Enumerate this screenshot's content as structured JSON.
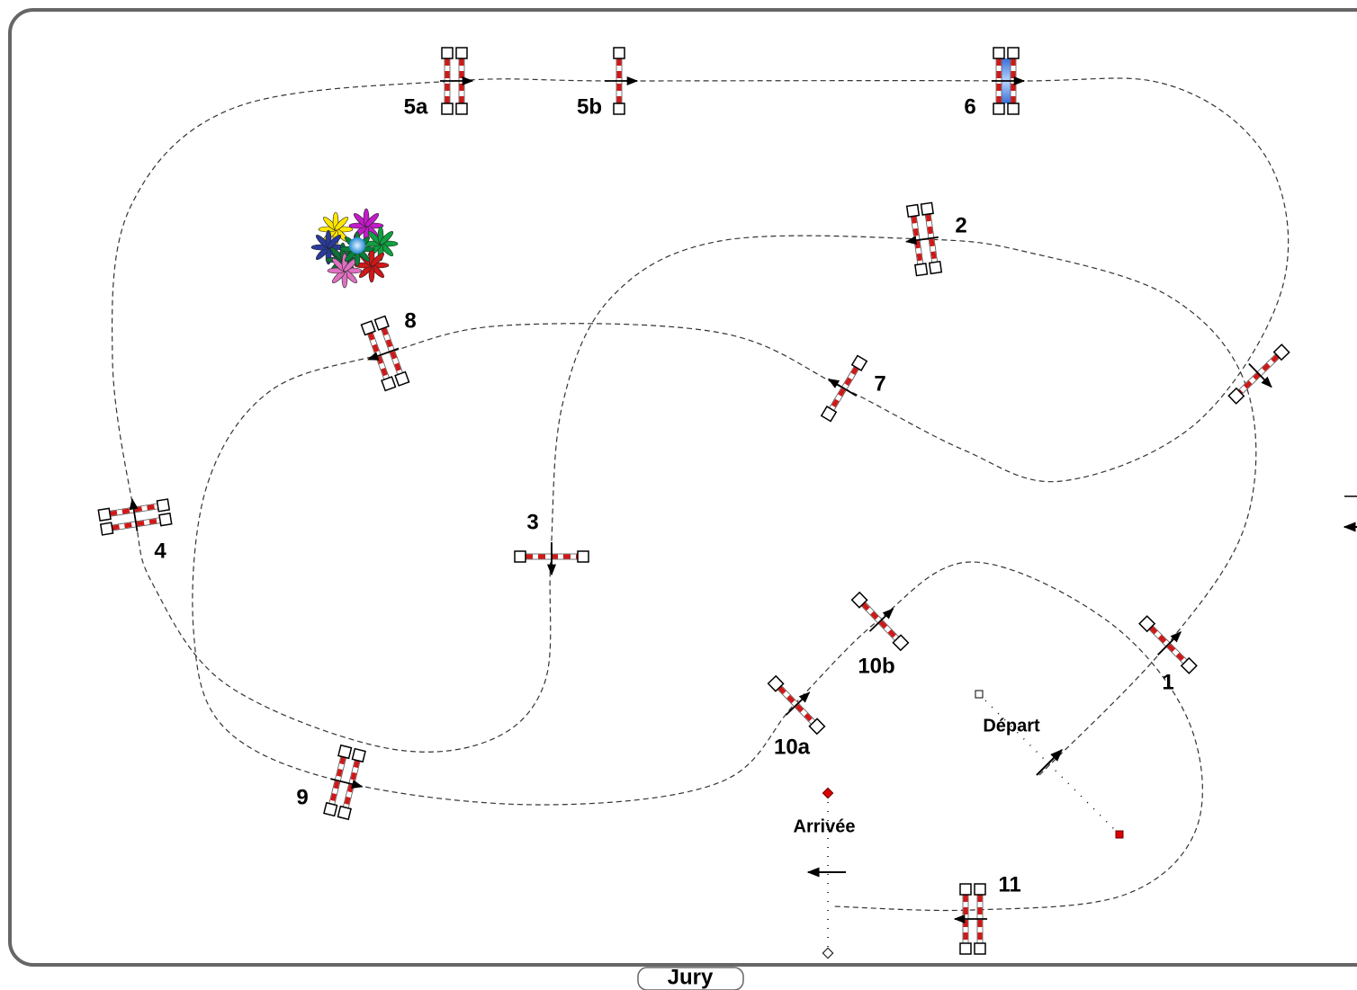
{
  "obstacles": [
    {
      "label": "5a"
    },
    {
      "label": "5b"
    },
    {
      "label": "6"
    },
    {
      "label": "2"
    },
    {
      "label": "8"
    },
    {
      "label": "7"
    },
    {
      "label": "4"
    },
    {
      "label": "3"
    },
    {
      "label": "10b"
    },
    {
      "label": "1"
    },
    {
      "label": "10a"
    },
    {
      "label": "9"
    },
    {
      "label": "11"
    }
  ],
  "start": {
    "label": "Départ"
  },
  "finish": {
    "label": "Arrivée"
  },
  "jury": "Jury"
}
